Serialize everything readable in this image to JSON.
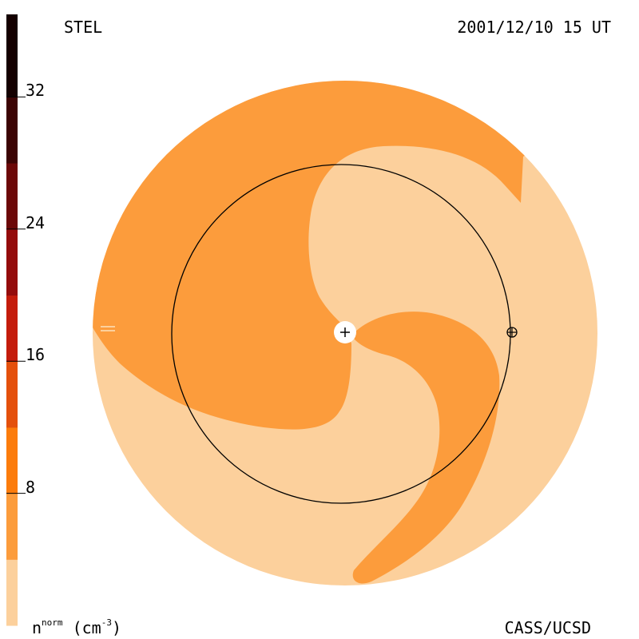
{
  "header": {
    "left_label": "STEL",
    "right_label": "2001/12/10 15 UT"
  },
  "footer": {
    "credit": "CASS/UCSD",
    "units_main": "n",
    "units_sup": "norm",
    "units_open": "(cm",
    "units_exp": "-3",
    "units_close": ")"
  },
  "colorbar": {
    "range": [
      0,
      37
    ],
    "bands": [
      {
        "from": 0,
        "to": 4,
        "color": "#fcd09c"
      },
      {
        "from": 4,
        "to": 8,
        "color": "#fc9c3c"
      },
      {
        "from": 8,
        "to": 12,
        "color": "#fc7c0c"
      },
      {
        "from": 12,
        "to": 16,
        "color": "#e4500c"
      },
      {
        "from": 16,
        "to": 20,
        "color": "#c41c0c"
      },
      {
        "from": 20,
        "to": 24,
        "color": "#940c0c"
      },
      {
        "from": 24,
        "to": 28,
        "color": "#6c0808"
      },
      {
        "from": 28,
        "to": 32,
        "color": "#3c0404"
      },
      {
        "from": 32,
        "to": 37,
        "color": "#140000"
      }
    ],
    "ticks": [
      {
        "value": 8,
        "label": "8"
      },
      {
        "value": 16,
        "label": "16"
      },
      {
        "value": 24,
        "label": "24"
      },
      {
        "value": 32,
        "label": "32"
      }
    ]
  },
  "colors": {
    "low_density": "#fcd09c",
    "mid_density": "#fc9c3c",
    "orbit": "#000000"
  }
}
